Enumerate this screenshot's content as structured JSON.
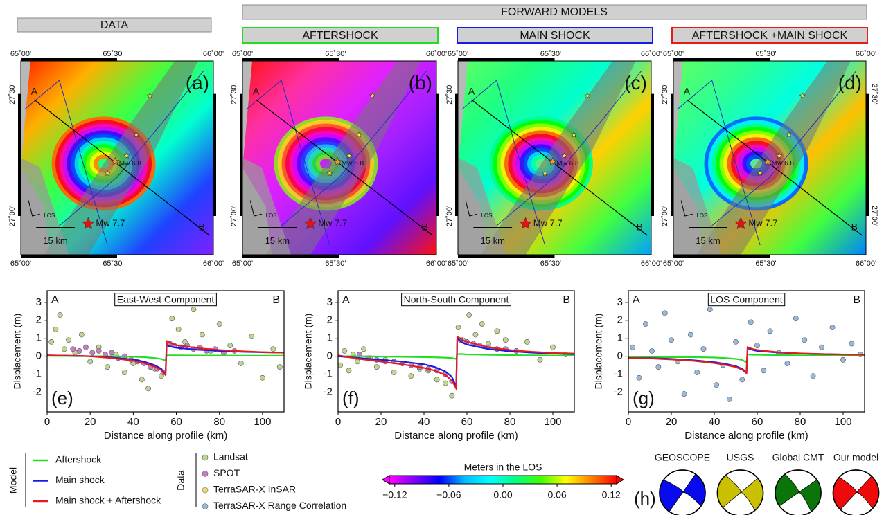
{
  "headers": {
    "data": "DATA",
    "forward_models": "FORWARD MODELS",
    "models": [
      "AFTERSHOCK",
      "MAIN SHOCK",
      "AFTERSHOCK +MAIN SHOCK"
    ],
    "model_colors": [
      "#22dd22",
      "#1a1ae6",
      "#e61a1a"
    ]
  },
  "map_axes": {
    "lon_labels": [
      "65˚00'",
      "65˚30'",
      "66˚00'"
    ],
    "lat_labels": [
      "27˚30'",
      "27˚00'"
    ]
  },
  "maps": [
    {
      "panel": "(a)",
      "profile_start": "A",
      "profile_end": "B",
      "scale": "15 km",
      "los": "LOS",
      "main_event": "Mw 7.7",
      "aftershock_event": "Mw 6.8"
    },
    {
      "panel": "(b)",
      "profile_start": "A",
      "profile_end": "B",
      "scale": "15 km",
      "los": "LOS",
      "main_event": "Mw 7.7",
      "aftershock_event": "Mw 6.8"
    },
    {
      "panel": "(c)",
      "profile_start": "A",
      "profile_end": "B",
      "scale": "15 km",
      "los": "LOS",
      "main_event": "Mw 7.7",
      "aftershock_event": "Mw 6.8"
    },
    {
      "panel": "(d)",
      "profile_start": "A",
      "profile_end": "B",
      "scale": "15 km",
      "los": "LOS",
      "main_event": "Mw 7.7",
      "aftershock_event": "Mw 6.8"
    }
  ],
  "chart_data": [
    {
      "type": "scatter",
      "title": "East-West Component",
      "panel": "(e)",
      "start_label": "A",
      "end_label": "B",
      "xlabel": "Distance along profile (km)",
      "ylabel": "Displacement (m)",
      "xlim": [
        0,
        110
      ],
      "ylim": [
        -3.1,
        3.65
      ],
      "xticks": [
        0,
        20,
        40,
        60,
        80,
        100
      ],
      "yticks": [
        -2,
        -1,
        0,
        1,
        2,
        3
      ],
      "series": [
        {
          "style": "markers",
          "color": "#bcd88a",
          "x": [
            2,
            4,
            6,
            8,
            10,
            13,
            16,
            20,
            24,
            28,
            32,
            36,
            40,
            44,
            47,
            50,
            53,
            58,
            61,
            64,
            68,
            72,
            76,
            80,
            85,
            90,
            95,
            100,
            105,
            108
          ],
          "values": [
            0.8,
            1.5,
            2.3,
            0.4,
            0.9,
            0.2,
            1.2,
            -0.3,
            0.5,
            -0.6,
            0.1,
            -0.9,
            -0.4,
            -1.3,
            -1.8,
            -0.7,
            -1.1,
            2.1,
            1.5,
            0.8,
            2.6,
            1.2,
            0.3,
            1.8,
            0.6,
            -0.4,
            1.1,
            -1.2,
            0.4,
            -0.6
          ]
        },
        {
          "style": "markers",
          "color": "#c87cc4",
          "x": [
            12,
            15,
            18,
            21,
            24,
            27,
            30,
            33,
            36,
            39,
            42,
            45,
            48,
            51,
            54,
            57,
            59,
            62,
            65,
            68,
            71,
            74,
            78,
            82,
            87
          ],
          "values": [
            0.4,
            0.3,
            0.5,
            0.2,
            0.3,
            0.1,
            0.2,
            -0.1,
            0.0,
            -0.2,
            -0.3,
            -0.4,
            -0.6,
            -0.7,
            -0.9,
            0.7,
            0.6,
            0.5,
            0.6,
            0.4,
            0.5,
            0.3,
            0.4,
            0.2,
            0.3
          ]
        },
        {
          "style": "line",
          "color": "#22dd22",
          "x": [
            0,
            10,
            20,
            30,
            40,
            45,
            50,
            53,
            55,
            55.5,
            58,
            60,
            70,
            80,
            90,
            100,
            110
          ],
          "values": [
            0.02,
            0.01,
            0,
            0,
            -0.03,
            -0.05,
            -0.1,
            -0.15,
            -0.25,
            0.05,
            0.05,
            0.05,
            0.04,
            0.04,
            0.03,
            0.03,
            0.03
          ]
        },
        {
          "style": "line",
          "color": "#1a1ae6",
          "x": [
            0,
            10,
            20,
            30,
            40,
            45,
            50,
            53,
            55,
            55.5,
            58,
            60,
            70,
            80,
            90,
            100,
            110
          ],
          "values": [
            0.05,
            0.03,
            0,
            -0.07,
            -0.18,
            -0.3,
            -0.5,
            -0.7,
            -1.0,
            0.6,
            0.52,
            0.47,
            0.36,
            0.3,
            0.25,
            0.22,
            0.2
          ]
        },
        {
          "style": "line",
          "color": "#e61a1a",
          "x": [
            0,
            10,
            20,
            30,
            40,
            45,
            50,
            53,
            55,
            55.5,
            58,
            60,
            70,
            80,
            90,
            100,
            110
          ],
          "values": [
            0.05,
            0.03,
            0,
            -0.1,
            -0.25,
            -0.38,
            -0.58,
            -0.78,
            -1.05,
            0.85,
            0.7,
            0.62,
            0.45,
            0.35,
            0.28,
            0.23,
            0.2
          ]
        }
      ]
    },
    {
      "type": "scatter",
      "title": "North-South Component",
      "panel": "(f)",
      "start_label": "A",
      "end_label": "B",
      "xlabel": "Distance along profile (km)",
      "ylabel": "Displacement (m)",
      "xlim": [
        0,
        110
      ],
      "ylim": [
        -3.1,
        3.65
      ],
      "xticks": [
        0,
        20,
        40,
        60,
        80,
        100
      ],
      "yticks": [
        -2,
        -1,
        0,
        1,
        2,
        3
      ],
      "series": [
        {
          "style": "markers",
          "color": "#bcd88a",
          "x": [
            1,
            3,
            5,
            7,
            9,
            12,
            15,
            18,
            22,
            26,
            30,
            34,
            38,
            42,
            46,
            50,
            53,
            56,
            58,
            61,
            64,
            67,
            70,
            74,
            78,
            83,
            88,
            94,
            100,
            106
          ],
          "values": [
            -0.5,
            0.3,
            -0.8,
            0.1,
            -0.3,
            0.4,
            -0.1,
            -0.6,
            -0.2,
            -0.9,
            -0.4,
            -1.1,
            -0.7,
            -0.8,
            -1.3,
            -1.5,
            -2.2,
            1.6,
            0.9,
            2.3,
            1.2,
            1.8,
            0.7,
            1.4,
            0.9,
            0.3,
            0.8,
            -0.2,
            0.5,
            0.1
          ]
        },
        {
          "style": "markers",
          "color": "#c87cc4",
          "x": [
            10,
            14,
            18,
            22,
            26,
            30,
            34,
            38,
            42,
            46,
            50,
            53,
            57,
            60,
            63,
            66,
            70,
            74,
            78,
            83
          ],
          "values": [
            0.1,
            -0.1,
            -0.2,
            -0.3,
            -0.3,
            -0.4,
            -0.5,
            -0.6,
            -0.7,
            -0.8,
            -1.0,
            -1.4,
            0.9,
            0.8,
            0.7,
            0.6,
            0.5,
            0.4,
            0.4,
            0.3
          ]
        },
        {
          "style": "line",
          "color": "#22dd22",
          "x": [
            0,
            10,
            20,
            30,
            40,
            45,
            50,
            53,
            55,
            55.5,
            58,
            60,
            70,
            80,
            90,
            100,
            110
          ],
          "values": [
            0,
            0,
            -0.02,
            -0.03,
            -0.05,
            -0.06,
            -0.08,
            -0.1,
            -0.15,
            0.12,
            0.12,
            0.1,
            0.08,
            0.06,
            0.05,
            0.04,
            0.04
          ]
        },
        {
          "style": "line",
          "color": "#1a1ae6",
          "x": [
            0,
            10,
            20,
            30,
            40,
            45,
            50,
            53,
            55,
            55.5,
            58,
            60,
            70,
            80,
            90,
            100,
            110
          ],
          "values": [
            0,
            -0.1,
            -0.2,
            -0.3,
            -0.45,
            -0.6,
            -0.85,
            -1.15,
            -1.7,
            1.0,
            0.75,
            0.65,
            0.4,
            0.28,
            0.2,
            0.15,
            0.12
          ]
        },
        {
          "style": "line",
          "color": "#e61a1a",
          "x": [
            0,
            10,
            20,
            30,
            40,
            45,
            50,
            53,
            55,
            55.5,
            58,
            60,
            70,
            80,
            90,
            100,
            110
          ],
          "values": [
            0.05,
            -0.15,
            -0.3,
            -0.45,
            -0.65,
            -0.8,
            -1.05,
            -1.35,
            -1.8,
            1.1,
            0.9,
            0.8,
            0.5,
            0.35,
            0.25,
            0.18,
            0.15
          ]
        }
      ]
    },
    {
      "type": "scatter",
      "title": "LOS Component",
      "panel": "(g)",
      "start_label": "A",
      "end_label": "B",
      "xlabel": "Distance along profile (km)",
      "ylabel": "Displacement (m)",
      "xlim": [
        0,
        110
      ],
      "ylim": [
        -3.1,
        3.65
      ],
      "xticks": [
        0,
        20,
        40,
        60,
        80,
        100
      ],
      "yticks": [
        -2,
        -1,
        0,
        1,
        2,
        3
      ],
      "series": [
        {
          "style": "markers",
          "color": "#9cbad6",
          "x": [
            2,
            5,
            8,
            11,
            14,
            17,
            20,
            23,
            26,
            29,
            32,
            35,
            38,
            41,
            44,
            47,
            50,
            53,
            57,
            60,
            63,
            66,
            70,
            74,
            78,
            82,
            86,
            90,
            95,
            100,
            104,
            108
          ],
          "values": [
            0.5,
            -1.2,
            1.8,
            0.3,
            -0.6,
            2.4,
            0.9,
            -0.3,
            -2.1,
            1.2,
            -0.9,
            0.4,
            2.6,
            -1.6,
            -0.5,
            -2.4,
            0.8,
            -1.3,
            1.9,
            0.6,
            -0.8,
            1.4,
            0.2,
            -0.4,
            2.1,
            0.9,
            -1.1,
            0.5,
            1.6,
            -0.2,
            0.7,
            0.1
          ]
        },
        {
          "style": "line",
          "color": "#22dd22",
          "x": [
            0,
            10,
            20,
            30,
            40,
            45,
            50,
            53,
            55,
            55.5,
            58,
            60,
            70,
            80,
            90,
            100,
            110
          ],
          "values": [
            -0.05,
            -0.05,
            -0.05,
            -0.05,
            -0.07,
            -0.1,
            -0.15,
            -0.2,
            -0.35,
            0.1,
            0.08,
            0.08,
            0.06,
            0.05,
            0.05,
            0.05,
            0.05
          ]
        },
        {
          "style": "line",
          "color": "#1a1ae6",
          "x": [
            0,
            10,
            20,
            30,
            40,
            45,
            50,
            53,
            55,
            55.5,
            58,
            60,
            70,
            80,
            90,
            100,
            110
          ],
          "values": [
            -0.1,
            -0.1,
            -0.15,
            -0.22,
            -0.33,
            -0.42,
            -0.55,
            -0.7,
            -0.9,
            0.45,
            0.35,
            0.3,
            0.2,
            0.15,
            0.12,
            0.1,
            0.08
          ]
        },
        {
          "style": "line",
          "color": "#e61a1a",
          "x": [
            0,
            10,
            20,
            30,
            40,
            45,
            50,
            53,
            55,
            55.5,
            58,
            60,
            70,
            80,
            90,
            100,
            110
          ],
          "values": [
            -0.1,
            -0.12,
            -0.18,
            -0.25,
            -0.38,
            -0.48,
            -0.6,
            -0.75,
            -0.95,
            0.5,
            0.4,
            0.35,
            0.22,
            0.16,
            0.12,
            0.1,
            0.08
          ]
        }
      ]
    }
  ],
  "legend": {
    "model_title": "Model",
    "models": [
      {
        "name": "Aftershock",
        "color": "#22dd22"
      },
      {
        "name": "Main shock",
        "color": "#1a1ae6"
      },
      {
        "name": "Main shock + Aftershock",
        "color": "#e61a1a"
      }
    ],
    "data_title": "Data",
    "data": [
      {
        "name": "Landsat",
        "color": "#bcd88a"
      },
      {
        "name": "SPOT",
        "color": "#c87cc4"
      },
      {
        "name": "TerraSAR-X InSAR",
        "color": "#f2dc6a"
      },
      {
        "name": "TerraSAR-X Range Correlation",
        "color": "#9cbad6"
      }
    ]
  },
  "colorbar": {
    "title": "Meters in the LOS",
    "lim": [
      -0.126,
      0.126
    ],
    "ticks": [
      {
        "value": -0.12,
        "label": "−0.12"
      },
      {
        "value": -0.06,
        "label": "−0.06"
      },
      {
        "value": 0,
        "label": "0.00"
      },
      0.06,
      0.12
    ],
    "colors": [
      "#ff00ff",
      "#8000ff",
      "#0000ff",
      "#00c0ff",
      "#00ffff",
      "#00ff80",
      "#40ff00",
      "#ffff00",
      "#ff8000",
      "#ff0000"
    ]
  },
  "beachballs": {
    "panel": "(h)",
    "solutions": [
      {
        "name": "GEOSCOPE",
        "color": "#0a0aee"
      },
      {
        "name": "USGS",
        "color": "#c8c000"
      },
      {
        "name": "Global CMT",
        "color": "#0a760a"
      },
      {
        "name": "Our model",
        "color": "#ee0a0a"
      }
    ]
  }
}
